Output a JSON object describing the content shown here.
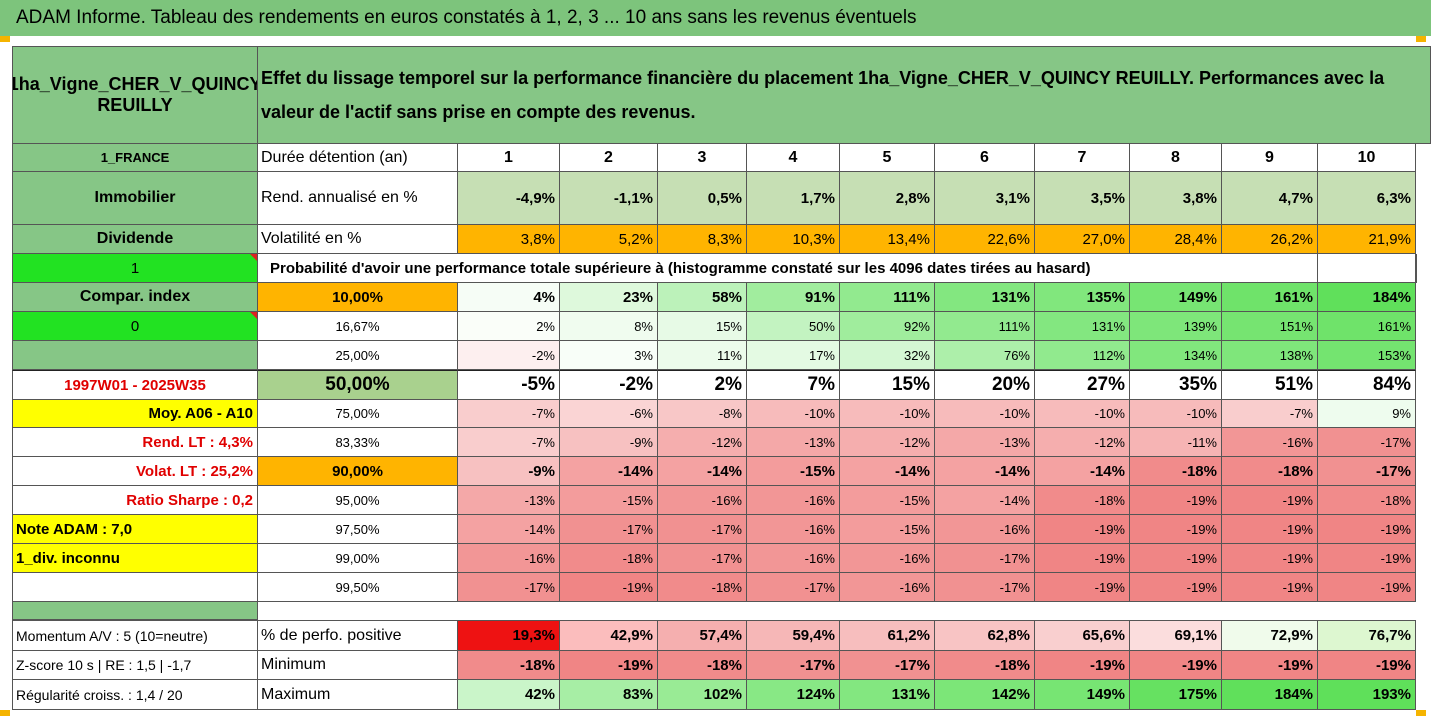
{
  "title": "ADAM Informe. Tableau des rendements en euros constatés à 1, 2, 3 ... 10 ans sans les revenus éventuels",
  "asset_name": "1ha_Vigne_CHER_V_QUINCY REUILLY",
  "description": "Effet du lissage temporel sur la performance financière du placement 1ha_Vigne_CHER_V_QUINCY REUILLY. Performances avec la valeur de l'actif sans prise en compte des revenus.",
  "left_labels": {
    "country": "1_FRANCE",
    "category": "Immobilier",
    "dividend": "Dividende",
    "value_one": "1",
    "compar_index": "Compar. index",
    "value_zero": "0",
    "period": "1997W01 - 2025W35",
    "moy": "Moy. A06 - A10",
    "rend_lt": "Rend. LT :    4,3%",
    "volat_lt": "Volat. LT :   25,2%",
    "sharpe": "Ratio Sharpe :    0,2",
    "note": "Note ADAM : 7,0",
    "div_unknown": "1_div. inconnu",
    "momentum": "Momentum A/V : 5 (10=neutre)",
    "zscore": "Z-score 10 s  |  RE : 1,5  |  -1,7",
    "regularite": "Régularité croiss. : 1,4 / 20"
  },
  "header_row": {
    "label": "Durée détention (an)",
    "years": [
      "1",
      "2",
      "3",
      "4",
      "5",
      "6",
      "7",
      "8",
      "9",
      "10"
    ]
  },
  "rend_row": {
    "label": "Rend. annualisé en %",
    "values": [
      "-4,9%",
      "-1,1%",
      "0,5%",
      "1,7%",
      "2,8%",
      "3,1%",
      "3,5%",
      "3,8%",
      "4,7%",
      "6,3%"
    ]
  },
  "vol_row": {
    "label": "Volatilité en %",
    "values": [
      "3,8%",
      "5,2%",
      "8,3%",
      "10,3%",
      "13,4%",
      "22,6%",
      "27,0%",
      "28,4%",
      "26,2%",
      "21,9%"
    ]
  },
  "probability_label": "Probabilité d'avoir une performance totale supérieure à (histogramme constaté sur les 4096 dates tirées au hasard)",
  "percentile_rows": [
    {
      "pct": "10,00%",
      "values": [
        "4%",
        "23%",
        "58%",
        "91%",
        "111%",
        "131%",
        "135%",
        "149%",
        "161%",
        "184%"
      ]
    },
    {
      "pct": "16,67%",
      "values": [
        "2%",
        "8%",
        "15%",
        "50%",
        "92%",
        "111%",
        "131%",
        "139%",
        "151%",
        "161%"
      ]
    },
    {
      "pct": "25,00%",
      "values": [
        "-2%",
        "3%",
        "11%",
        "17%",
        "32%",
        "76%",
        "112%",
        "134%",
        "138%",
        "153%"
      ]
    },
    {
      "pct": "50,00%",
      "values": [
        "-5%",
        "-2%",
        "2%",
        "7%",
        "15%",
        "20%",
        "27%",
        "35%",
        "51%",
        "84%"
      ]
    },
    {
      "pct": "75,00%",
      "values": [
        "-7%",
        "-6%",
        "-8%",
        "-10%",
        "-10%",
        "-10%",
        "-10%",
        "-10%",
        "-7%",
        "9%"
      ]
    },
    {
      "pct": "83,33%",
      "values": [
        "-7%",
        "-9%",
        "-12%",
        "-13%",
        "-12%",
        "-13%",
        "-12%",
        "-11%",
        "-16%",
        "-17%"
      ]
    },
    {
      "pct": "90,00%",
      "values": [
        "-9%",
        "-14%",
        "-14%",
        "-15%",
        "-14%",
        "-14%",
        "-14%",
        "-18%",
        "-18%",
        "-17%"
      ]
    },
    {
      "pct": "95,00%",
      "values": [
        "-13%",
        "-15%",
        "-16%",
        "-16%",
        "-15%",
        "-14%",
        "-18%",
        "-19%",
        "-19%",
        "-18%"
      ]
    },
    {
      "pct": "97,50%",
      "values": [
        "-14%",
        "-17%",
        "-17%",
        "-16%",
        "-15%",
        "-16%",
        "-19%",
        "-19%",
        "-19%",
        "-19%"
      ]
    },
    {
      "pct": "99,00%",
      "values": [
        "-16%",
        "-18%",
        "-17%",
        "-16%",
        "-16%",
        "-17%",
        "-19%",
        "-19%",
        "-19%",
        "-19%"
      ]
    },
    {
      "pct": "99,50%",
      "values": [
        "-17%",
        "-19%",
        "-18%",
        "-17%",
        "-16%",
        "-17%",
        "-19%",
        "-19%",
        "-19%",
        "-19%"
      ]
    }
  ],
  "bottom_rows": [
    {
      "label": "% de perfo. positive",
      "values": [
        "19,3%",
        "42,9%",
        "57,4%",
        "59,4%",
        "61,2%",
        "62,8%",
        "65,6%",
        "69,1%",
        "72,9%",
        "76,7%"
      ]
    },
    {
      "label": "Minimum",
      "values": [
        "-18%",
        "-19%",
        "-18%",
        "-17%",
        "-17%",
        "-18%",
        "-19%",
        "-19%",
        "-19%",
        "-19%"
      ]
    },
    {
      "label": "Maximum",
      "values": [
        "42%",
        "83%",
        "102%",
        "124%",
        "131%",
        "142%",
        "149%",
        "175%",
        "184%",
        "193%"
      ]
    }
  ],
  "colors": {
    "title_green": "#7dc47c",
    "label_green": "#86c686",
    "bright_green": "#22e222",
    "orange": "#ffb400",
    "yellow": "#ffff00",
    "rend_green": "#c6dfb4",
    "median_green": "#a9d18e",
    "red_text": "#e00000"
  }
}
